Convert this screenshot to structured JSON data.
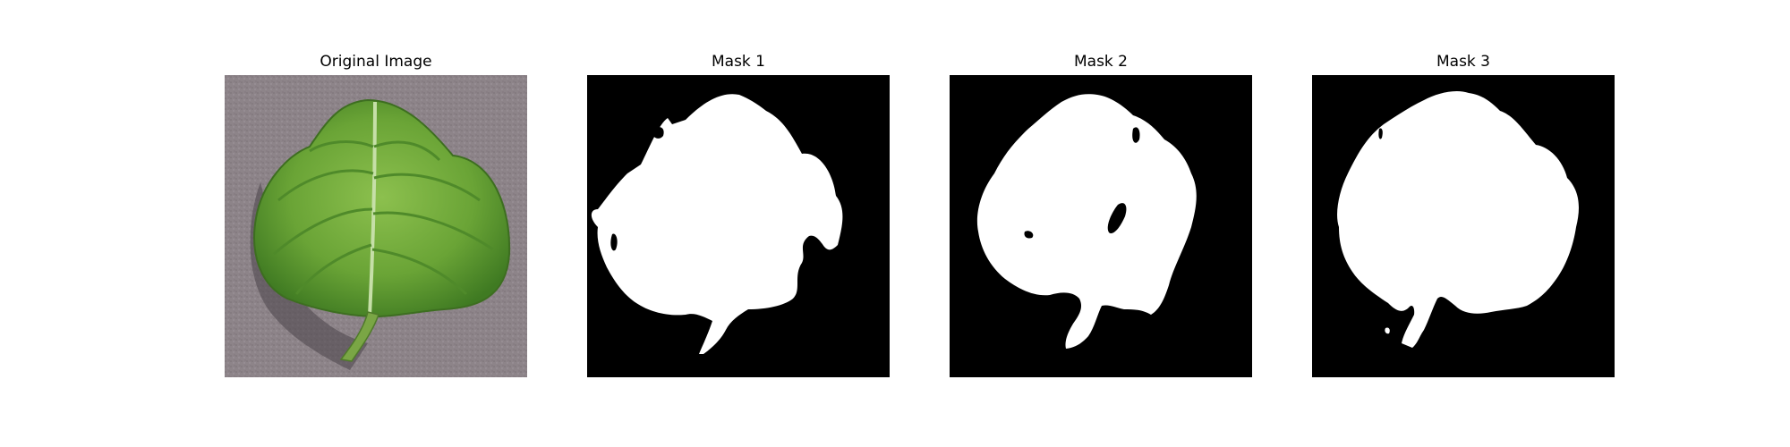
{
  "figure": {
    "panels": [
      {
        "title": "Original Image"
      },
      {
        "title": "Mask 1"
      },
      {
        "title": "Mask 2"
      },
      {
        "title": "Mask 3"
      }
    ]
  },
  "colors": {
    "background": "#ffffff",
    "mask_foreground": "#ffffff",
    "mask_background": "#000000",
    "leaf_green": "#6fa83a",
    "pavement_gray": "#8c8288"
  }
}
